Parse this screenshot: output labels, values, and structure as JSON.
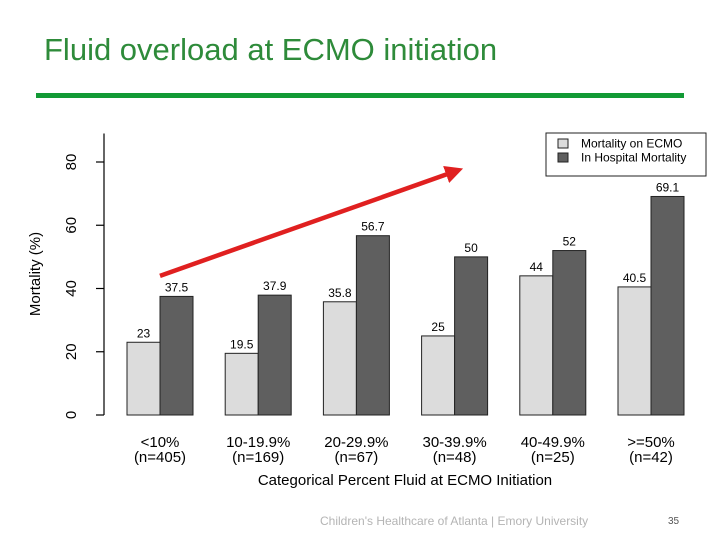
{
  "slide": {
    "title": "Fluid overload at ECMO initiation",
    "footer": "Children's Healthcare of Atlanta | Emory University",
    "page_number": "35"
  },
  "colors": {
    "title": "#2e8b3a",
    "rule": "#129a35",
    "series_ecmo": "#dcdcdc",
    "series_hospital": "#5f5f5f",
    "arrow": "#e02020"
  },
  "chart_data": {
    "type": "bar",
    "xlabel": "Categorical Percent Fluid at ECMO Initiation",
    "ylabel": "Mortality (%)",
    "ylim": [
      0,
      89
    ],
    "yticks": [
      0,
      20,
      40,
      60,
      80
    ],
    "grid": false,
    "legend_position": "top-right",
    "categories": [
      {
        "label": "<10%",
        "n": "(n=405)"
      },
      {
        "label": "10-19.9%",
        "n": "(n=169)"
      },
      {
        "label": "20-29.9%",
        "n": "(n=67)"
      },
      {
        "label": "30-39.9%",
        "n": "(n=48)"
      },
      {
        "label": "40-49.9%",
        "n": "(n=25)"
      },
      {
        "label": ">=50%",
        "n": "(n=42)"
      }
    ],
    "series": [
      {
        "name": "Mortality on ECMO",
        "values": [
          23,
          19.5,
          35.8,
          25,
          44,
          40.5
        ],
        "labels": [
          "23",
          "19.5",
          "35.8",
          "25",
          "44",
          "40.5"
        ]
      },
      {
        "name": "In Hospital Mortality",
        "values": [
          37.5,
          37.9,
          56.7,
          50,
          52,
          69.1
        ],
        "labels": [
          "37.5",
          "37.9",
          "56.7",
          "50",
          "52",
          "69.1"
        ]
      }
    ],
    "annotations": [
      {
        "type": "trend-arrow",
        "from": {
          "category": 0,
          "value": 44
        },
        "to": {
          "category": 3,
          "value": 77
        }
      }
    ]
  }
}
